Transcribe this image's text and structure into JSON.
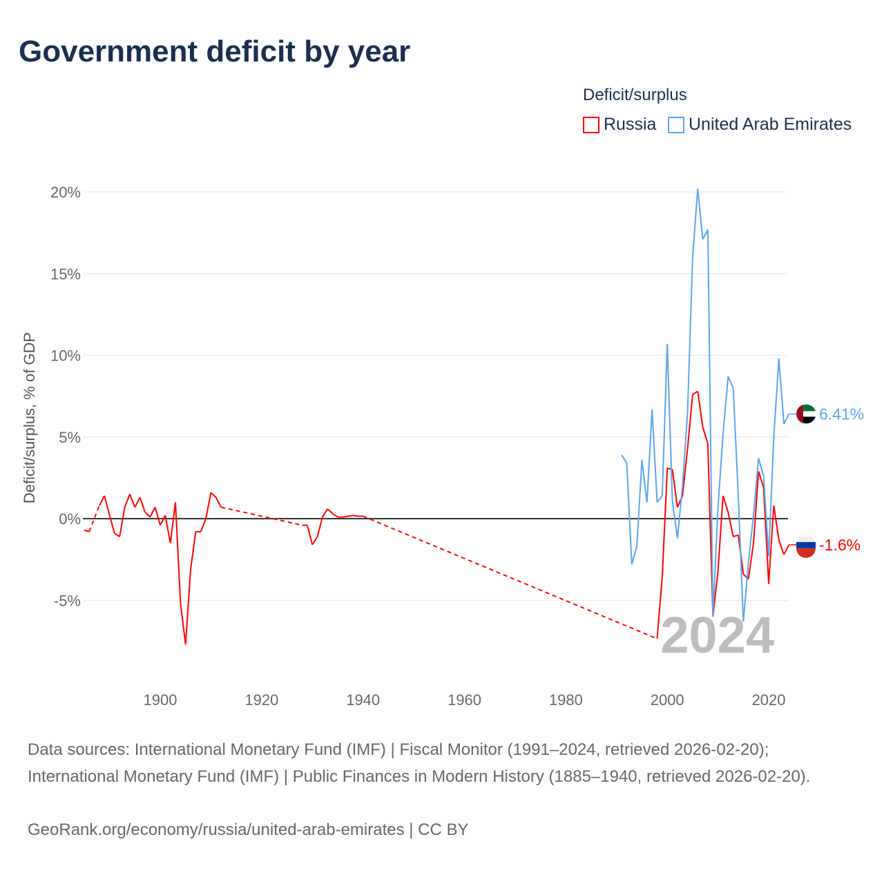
{
  "title": "Government deficit by year",
  "legend": {
    "title": "Deficit/surplus",
    "items": [
      {
        "name": "Russia",
        "color": "#ff0000"
      },
      {
        "name": "United Arab Emirates",
        "color": "#5aa5ea"
      }
    ]
  },
  "footer": {
    "sources": "Data sources: International Monetary Fund (IMF) | Fiscal Monitor (1991–2024, retrieved 2026-02-20); International Monetary Fund (IMF) | Public Finances in Modern History (1885–1940, retrieved 2026-02-20).",
    "credit": "GeoRank.org/economy/russia/united-arab-emirates | CC BY"
  },
  "chart_data": {
    "type": "line",
    "ylabel": "Deficit/surplus, % of GDP",
    "xlim": [
      1885,
      2024
    ],
    "ylim": [
      -8,
      20
    ],
    "xticks": [
      1900,
      1920,
      1940,
      1960,
      1980,
      2000,
      2020
    ],
    "yticks": [
      -5,
      0,
      5,
      10,
      15,
      20
    ],
    "ytick_labels": [
      "-5%",
      "0%",
      "5%",
      "10%",
      "15%",
      "20%"
    ],
    "xtick_labels": [
      "1900",
      "1920",
      "1940",
      "1960",
      "1980",
      "2000",
      "2020"
    ],
    "year_label": "2024",
    "series": [
      {
        "name": "Russia",
        "color": "#ff0000",
        "end_label": "-1.6%",
        "points": [
          [
            1885,
            -0.7
          ],
          [
            1886,
            -0.8
          ],
          [
            1888,
            0.8
          ],
          [
            1889,
            1.4
          ],
          [
            1890,
            0.2
          ],
          [
            1891,
            -0.9
          ],
          [
            1892,
            -1.1
          ],
          [
            1893,
            0.7
          ],
          [
            1894,
            1.5
          ],
          [
            1895,
            0.7
          ],
          [
            1896,
            1.3
          ],
          [
            1897,
            0.4
          ],
          [
            1898,
            0.1
          ],
          [
            1899,
            0.7
          ],
          [
            1900,
            -0.4
          ],
          [
            1901,
            0.2
          ],
          [
            1902,
            -1.5
          ],
          [
            1903,
            1.0
          ],
          [
            1904,
            -5.2
          ],
          [
            1905,
            -7.7
          ],
          [
            1906,
            -3.1
          ],
          [
            1907,
            -0.8
          ],
          [
            1908,
            -0.8
          ],
          [
            1909,
            0
          ],
          [
            1910,
            1.6
          ],
          [
            1911,
            1.3
          ],
          [
            1912,
            0.7
          ],
          [
            1928,
            -0.4
          ],
          [
            1929,
            -0.4
          ],
          [
            1930,
            -1.6
          ],
          [
            1931,
            -1.1
          ],
          [
            1932,
            0.1
          ],
          [
            1933,
            0.6
          ],
          [
            1934,
            0.3
          ],
          [
            1935,
            0.1
          ],
          [
            1936,
            0.1
          ],
          [
            1937,
            0.15
          ],
          [
            1938,
            0.2
          ],
          [
            1939,
            0.15
          ],
          [
            1940,
            0.15
          ],
          [
            1998,
            -7.35
          ],
          [
            1999,
            -3.6
          ],
          [
            2000,
            3.1
          ],
          [
            2001,
            3.0
          ],
          [
            2002,
            0.7
          ],
          [
            2003,
            1.4
          ],
          [
            2004,
            4.3
          ],
          [
            2005,
            7.6
          ],
          [
            2006,
            7.8
          ],
          [
            2007,
            5.6
          ],
          [
            2008,
            4.6
          ],
          [
            2009,
            -6.0
          ],
          [
            2010,
            -3.2
          ],
          [
            2011,
            1.4
          ],
          [
            2012,
            0.4
          ],
          [
            2013,
            -1.1
          ],
          [
            2014,
            -1.0
          ],
          [
            2015,
            -3.4
          ],
          [
            2016,
            -3.7
          ],
          [
            2017,
            -1.5
          ],
          [
            2018,
            2.9
          ],
          [
            2019,
            1.9
          ],
          [
            2020,
            -4.0
          ],
          [
            2021,
            0.8
          ],
          [
            2022,
            -1.3
          ],
          [
            2023,
            -2.2
          ],
          [
            2024,
            -1.6
          ]
        ]
      },
      {
        "name": "United Arab Emirates",
        "color": "#5aa5ea",
        "end_label": "6.41%",
        "points": [
          [
            1991,
            3.9
          ],
          [
            1992,
            3.4
          ],
          [
            1993,
            -2.8
          ],
          [
            1994,
            -1.7
          ],
          [
            1995,
            3.6
          ],
          [
            1996,
            1.0
          ],
          [
            1997,
            6.7
          ],
          [
            1998,
            1.0
          ],
          [
            1999,
            1.4
          ],
          [
            2000,
            10.7
          ],
          [
            2001,
            1.1
          ],
          [
            2002,
            -1.2
          ],
          [
            2003,
            2.0
          ],
          [
            2004,
            6.5
          ],
          [
            2005,
            16.0
          ],
          [
            2006,
            20.2
          ],
          [
            2007,
            17.1
          ],
          [
            2008,
            17.7
          ],
          [
            2009,
            -6.0
          ],
          [
            2010,
            0.7
          ],
          [
            2011,
            5.2
          ],
          [
            2012,
            8.7
          ],
          [
            2013,
            8.0
          ],
          [
            2014,
            1.4
          ],
          [
            2015,
            -6.3
          ],
          [
            2016,
            -2.7
          ],
          [
            2017,
            0.2
          ],
          [
            2018,
            3.7
          ],
          [
            2019,
            2.6
          ],
          [
            2020,
            -2.3
          ],
          [
            2021,
            5.0
          ],
          [
            2022,
            9.8
          ],
          [
            2023,
            5.8
          ],
          [
            2024,
            6.41
          ]
        ]
      }
    ]
  }
}
